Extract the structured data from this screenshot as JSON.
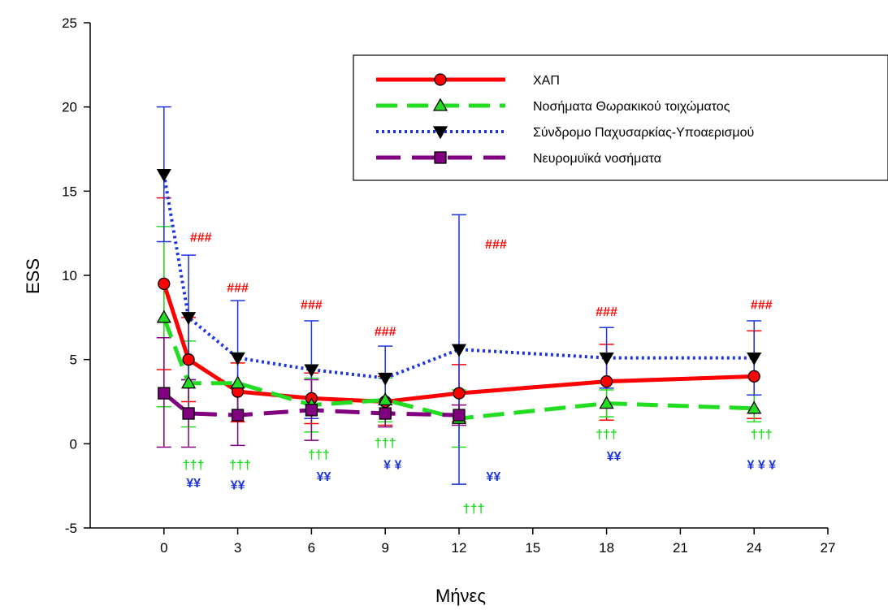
{
  "chart_data": {
    "type": "line",
    "title": "",
    "xlabel": "Μήνες",
    "ylabel": "ESS",
    "xlim": [
      -3,
      27
    ],
    "ylim": [
      -5,
      25
    ],
    "xticks": [
      0,
      3,
      6,
      9,
      12,
      15,
      18,
      21,
      24,
      27
    ],
    "yticks": [
      -5,
      0,
      5,
      10,
      15,
      20,
      25
    ],
    "grid": false,
    "legend_position": "top-right",
    "series": [
      {
        "name": "ΧΑΠ",
        "color": "#ff0000",
        "line_style": "solid",
        "marker": "circle",
        "x": [
          0,
          1,
          3,
          6,
          9,
          12,
          18,
          24
        ],
        "y": [
          9.5,
          5.0,
          3.1,
          2.7,
          2.5,
          3.0,
          3.7,
          4.0
        ],
        "err_low": [
          4.4,
          2.5,
          1.3,
          1.2,
          1.1,
          1.3,
          1.4,
          1.5
        ],
        "err_high": [
          14.6,
          7.5,
          4.8,
          4.2,
          4.0,
          4.7,
          5.9,
          6.7
        ]
      },
      {
        "name": "Νοσήματα Θωρακικού τοιχώματος",
        "color": "#22dd22",
        "line_style": "dashed",
        "marker": "triangle-up",
        "x": [
          0,
          1,
          3,
          6,
          9,
          12,
          18,
          24
        ],
        "y": [
          7.5,
          3.6,
          3.6,
          2.3,
          2.6,
          1.5,
          2.4,
          2.1
        ],
        "err_low": [
          2.2,
          1.0,
          1.8,
          0.7,
          1.3,
          -0.2,
          1.6,
          1.3
        ],
        "err_high": [
          12.9,
          6.1,
          5.4,
          3.9,
          3.9,
          3.2,
          3.2,
          2.9
        ]
      },
      {
        "name": "Σύνδρομο Παχυσαρκίας-Υποαερισμού",
        "color": "#1e35e0",
        "line_style": "dotted",
        "marker": "triangle-down",
        "x": [
          0,
          1,
          3,
          6,
          9,
          12,
          18,
          24
        ],
        "y": [
          16.0,
          7.5,
          5.1,
          4.4,
          3.9,
          5.6,
          5.1,
          5.1
        ],
        "err_low": [
          12.0,
          3.8,
          1.7,
          1.5,
          1.9,
          -2.4,
          3.3,
          2.9
        ],
        "err_high": [
          20.0,
          11.2,
          8.5,
          7.3,
          5.8,
          13.6,
          6.9,
          7.3
        ]
      },
      {
        "name": "Νευρομυϊκά νοσήματα",
        "color": "#800080",
        "line_style": "long-dashed",
        "marker": "square",
        "x": [
          0,
          1,
          3,
          6,
          9,
          12
        ],
        "y": [
          3.0,
          1.8,
          1.7,
          2.0,
          1.8,
          1.7
        ],
        "err_low": [
          -0.2,
          -0.2,
          -0.1,
          0.2,
          1.0,
          1.1
        ],
        "err_high": [
          6.3,
          3.8,
          3.5,
          3.8,
          2.6,
          2.3
        ]
      }
    ],
    "annotations": [
      {
        "text": "###",
        "x": 1.5,
        "y": 12.0,
        "color": "#ff0000"
      },
      {
        "text": "###",
        "x": 3.0,
        "y": 9.0,
        "color": "#ff0000"
      },
      {
        "text": "###",
        "x": 6.0,
        "y": 8.0,
        "color": "#ff0000"
      },
      {
        "text": "###",
        "x": 9.0,
        "y": 6.4,
        "color": "#ff0000"
      },
      {
        "text": "###",
        "x": 13.5,
        "y": 11.6,
        "color": "#ff0000"
      },
      {
        "text": "###",
        "x": 18.0,
        "y": 7.6,
        "color": "#ff0000"
      },
      {
        "text": "###",
        "x": 24.3,
        "y": 8.0,
        "color": "#ff0000"
      },
      {
        "text": "†††",
        "x": 1.2,
        "y": -1.5,
        "color": "#22dd22"
      },
      {
        "text": "†††",
        "x": 3.1,
        "y": -1.5,
        "color": "#22dd22"
      },
      {
        "text": "†††",
        "x": 6.3,
        "y": -0.9,
        "color": "#22dd22"
      },
      {
        "text": "†††",
        "x": 9.0,
        "y": -0.2,
        "color": "#22dd22"
      },
      {
        "text": "†††",
        "x": 12.6,
        "y": -4.1,
        "color": "#22dd22"
      },
      {
        "text": "†††",
        "x": 18.0,
        "y": 0.3,
        "color": "#22dd22"
      },
      {
        "text": "†††",
        "x": 24.3,
        "y": 0.3,
        "color": "#22dd22"
      },
      {
        "text": "¥¥",
        "x": 1.2,
        "y": -2.6,
        "color": "#1e35e0"
      },
      {
        "text": "¥¥",
        "x": 3.0,
        "y": -2.7,
        "color": "#1e35e0"
      },
      {
        "text": "¥¥",
        "x": 6.5,
        "y": -2.2,
        "color": "#1e35e0"
      },
      {
        "text": "¥ ¥",
        "x": 9.3,
        "y": -1.5,
        "color": "#1e35e0"
      },
      {
        "text": "¥¥",
        "x": 13.4,
        "y": -2.2,
        "color": "#1e35e0"
      },
      {
        "text": "¥¥",
        "x": 18.3,
        "y": -1.0,
        "color": "#1e35e0"
      },
      {
        "text": "¥ ¥ ¥",
        "x": 24.3,
        "y": -1.5,
        "color": "#1e35e0"
      }
    ]
  }
}
